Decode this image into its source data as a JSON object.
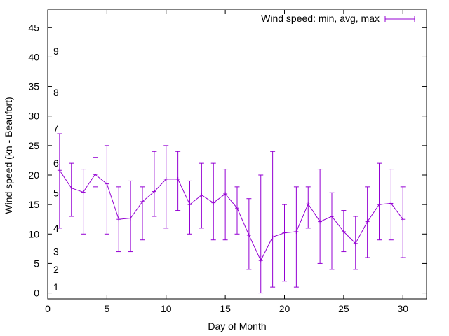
{
  "colors": {
    "series": "#9400d3",
    "axis": "#000000",
    "background": "#ffffff"
  },
  "chart_data": {
    "type": "line",
    "title": "",
    "xlabel": "Day of Month",
    "ylabel": "Wind speed (kn - Beaufort)",
    "xlim": [
      0,
      32
    ],
    "ylim": [
      -1,
      48
    ],
    "x_ticks": [
      0,
      5,
      10,
      15,
      20,
      25,
      30
    ],
    "y_ticks": [
      0,
      5,
      10,
      15,
      20,
      25,
      30,
      35,
      40,
      45
    ],
    "grid": false,
    "legend_position": "top-right",
    "series": [
      {
        "name": "Wind speed: min, avg, max",
        "style": "line-with-errorbars",
        "x": [
          1,
          2,
          3,
          4,
          5,
          6,
          7,
          8,
          9,
          10,
          11,
          12,
          13,
          14,
          15,
          16,
          17,
          18,
          19,
          20,
          21,
          22,
          23,
          24,
          25,
          26,
          27,
          28,
          29,
          30
        ],
        "avg": [
          20.8,
          17.8,
          17.1,
          20.1,
          18.5,
          12.5,
          12.7,
          15.5,
          17.2,
          19.3,
          19.3,
          15.0,
          16.6,
          15.3,
          16.8,
          14.4,
          9.8,
          5.5,
          9.5,
          10.2,
          10.4,
          15.1,
          12.1,
          13.0,
          10.4,
          8.4,
          12.1,
          15.0,
          15.2,
          12.5
        ],
        "min": [
          11,
          13,
          10,
          18,
          10,
          7,
          7,
          9,
          13,
          11,
          14,
          10,
          11,
          9,
          9,
          10,
          4,
          0,
          1,
          2,
          1,
          11,
          5,
          4,
          7,
          4,
          6,
          9,
          9,
          6
        ],
        "max": [
          27,
          22,
          21,
          23,
          25,
          18,
          19,
          18,
          24,
          25,
          24,
          19,
          22,
          22,
          21,
          18,
          16,
          20,
          24,
          15,
          18,
          18,
          21,
          17,
          14,
          13,
          18,
          22,
          21,
          18
        ]
      }
    ],
    "annotations": [
      {
        "text": "1",
        "y": 1
      },
      {
        "text": "2",
        "y": 4
      },
      {
        "text": "3",
        "y": 7
      },
      {
        "text": "4",
        "y": 11
      },
      {
        "text": "5",
        "y": 17
      },
      {
        "text": "6",
        "y": 22
      },
      {
        "text": "7",
        "y": 28
      },
      {
        "text": "8",
        "y": 34
      },
      {
        "text": "9",
        "y": 41
      }
    ]
  }
}
